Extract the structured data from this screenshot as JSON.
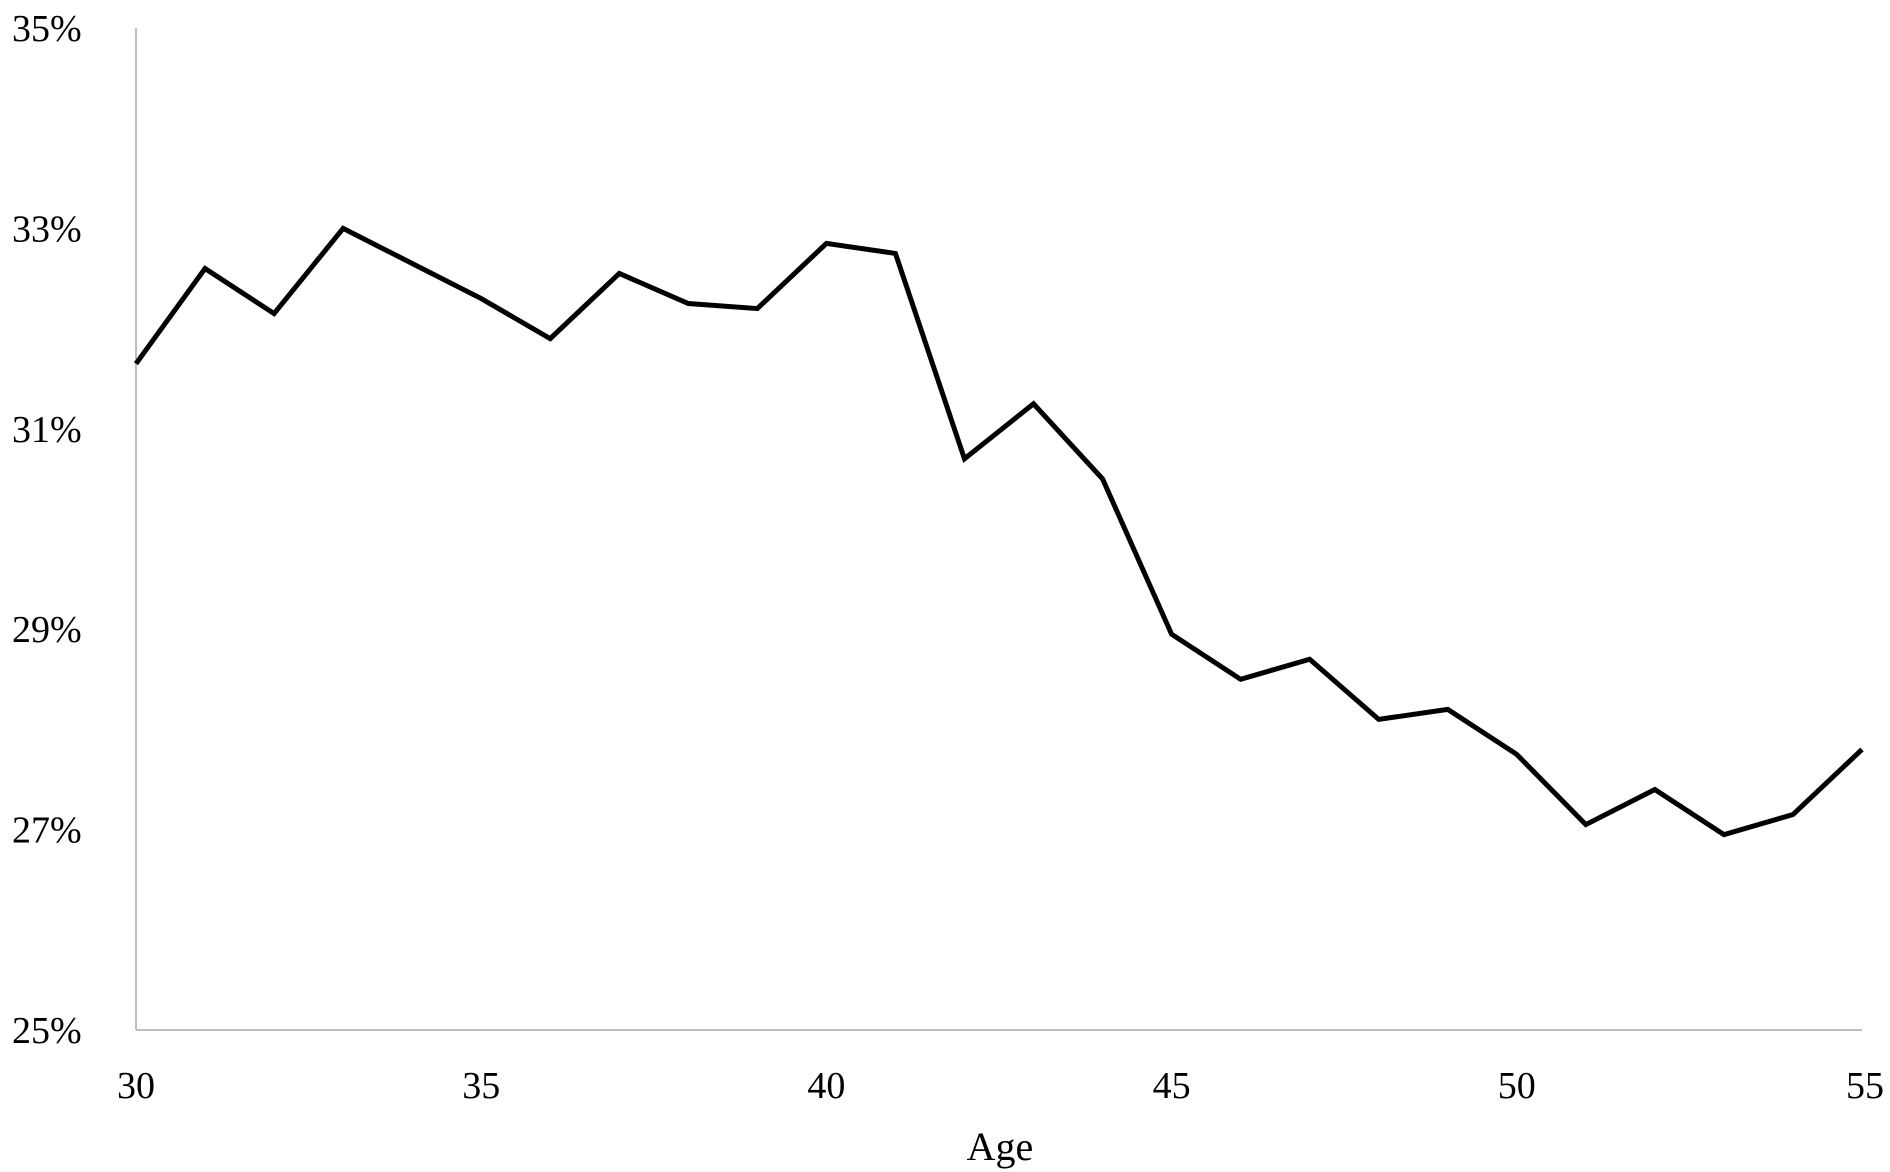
{
  "chart_data": {
    "type": "line",
    "title": "",
    "xlabel": "Age",
    "ylabel": "",
    "xlim": [
      30,
      55
    ],
    "ylim": [
      25,
      35
    ],
    "x_ticks": [
      30,
      35,
      40,
      45,
      50,
      55
    ],
    "y_ticks": [
      25,
      27,
      29,
      31,
      33,
      35
    ],
    "y_tick_suffix": "%",
    "grid": false,
    "legend": "none",
    "series": [
      {
        "color": "#000000",
        "x": [
          30,
          31,
          32,
          33,
          34,
          35,
          36,
          37,
          38,
          39,
          40,
          41,
          42,
          43,
          44,
          45,
          46,
          47,
          48,
          49,
          50,
          51,
          52,
          53,
          54,
          55
        ],
        "y": [
          31.65,
          32.6,
          32.15,
          33.0,
          32.65,
          32.3,
          31.9,
          32.55,
          32.25,
          32.2,
          32.85,
          32.75,
          30.7,
          31.25,
          30.5,
          28.95,
          28.5,
          28.7,
          28.1,
          28.2,
          27.75,
          27.05,
          27.4,
          26.95,
          27.15,
          27.8
        ]
      }
    ]
  }
}
